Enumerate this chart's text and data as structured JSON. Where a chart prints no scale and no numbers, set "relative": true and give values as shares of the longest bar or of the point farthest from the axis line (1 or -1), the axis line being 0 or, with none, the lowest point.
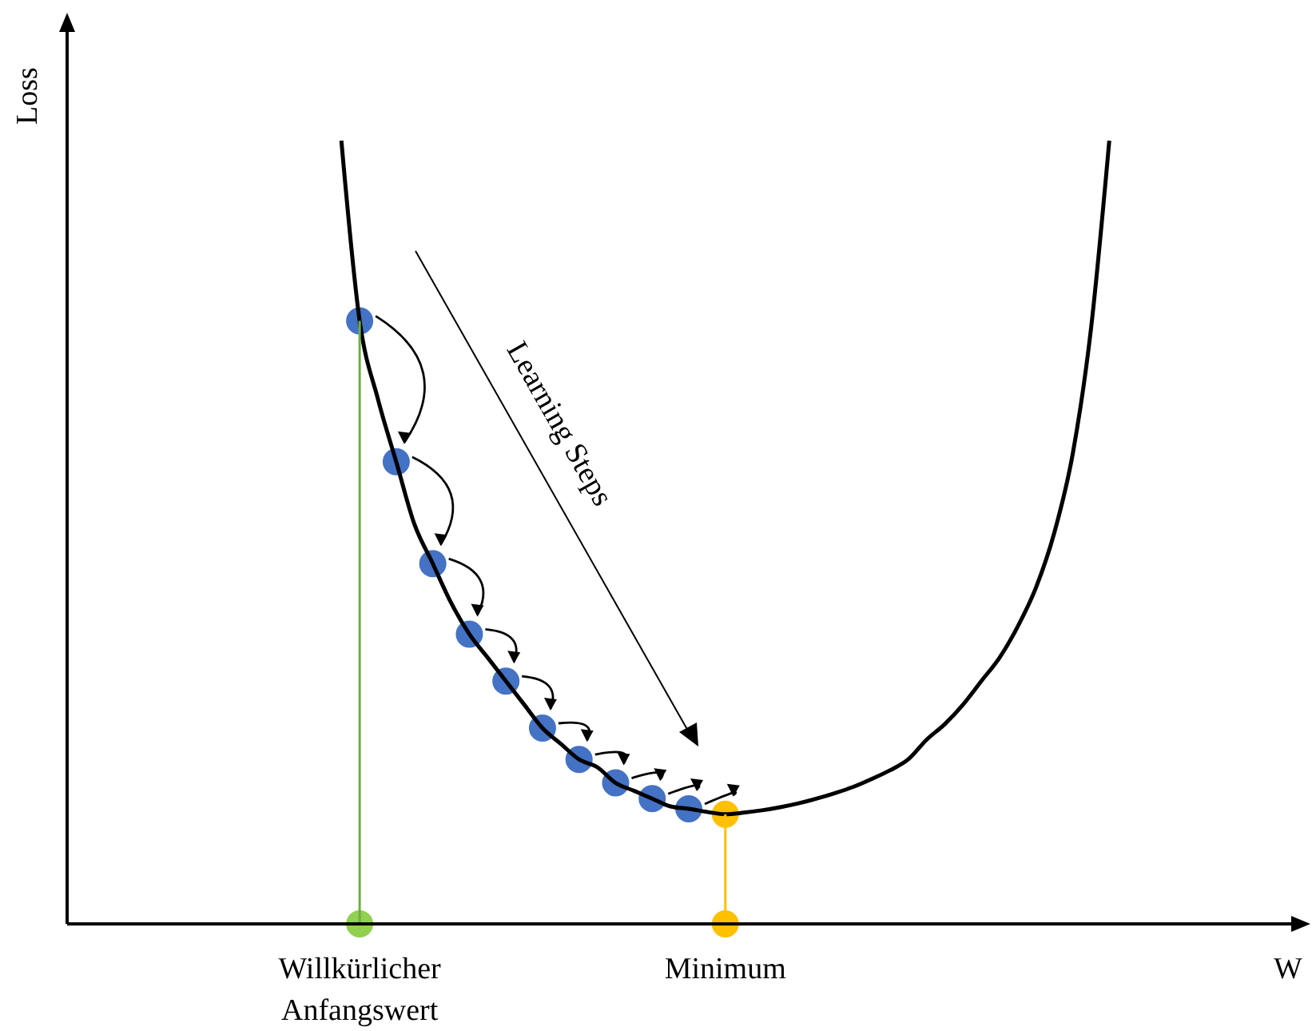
{
  "chart_data": {
    "type": "line",
    "relative": true,
    "xlabel": "W",
    "ylabel": "Loss",
    "categories": [
      null,
      null,
      null,
      null,
      null,
      null,
      null,
      null,
      null,
      null,
      null,
      null,
      null,
      null,
      null,
      null,
      "Willkürlicher Anfangswert",
      null,
      null,
      null,
      null,
      null,
      null,
      null,
      null,
      null,
      null,
      null,
      null,
      null,
      null,
      null,
      null,
      null,
      null,
      null,
      "Minimum",
      null,
      null,
      null,
      null,
      null,
      null,
      null,
      null,
      null,
      null,
      null,
      null,
      null,
      null,
      null,
      null,
      null,
      null,
      null,
      null,
      null,
      null,
      null,
      null,
      null,
      null,
      null,
      null,
      null,
      null,
      null,
      null
    ],
    "annotations": [
      "Learning Steps"
    ],
    "series": [
      {
        "color": "#000000",
        "values": [
          null,
          null,
          null,
          null,
          null,
          null,
          null,
          null,
          null,
          null,
          null,
          null,
          null,
          null,
          null,
          1,
          0.77,
          0.67,
          0.59,
          0.51,
          0.46,
          0.41,
          0.37,
          0.34,
          0.31,
          0.28,
          0.25,
          0.23,
          0.21,
          0.2,
          0.18,
          0.17,
          0.16,
          0.15,
          0.147,
          0.143,
          0.14,
          0.142,
          0.145,
          0.149,
          0.154,
          0.16,
          0.167,
          0.175,
          0.185,
          0.196,
          0.21,
          0.235,
          0.255,
          0.28,
          0.31,
          0.34,
          0.38,
          0.43,
          0.5,
          0.6,
          0.76,
          1,
          null,
          null,
          null,
          null,
          null,
          null,
          null,
          null,
          null,
          null,
          null
        ]
      },
      {
        "type": "bar",
        "color": "#70ad47",
        "values": [
          null,
          null,
          null,
          null,
          null,
          null,
          null,
          null,
          null,
          null,
          null,
          null,
          null,
          null,
          null,
          null,
          0.77,
          null,
          null,
          null,
          null,
          null,
          null,
          null,
          null,
          null,
          null,
          null,
          null,
          null,
          null,
          null,
          null,
          null,
          null,
          null,
          null,
          null,
          null,
          null,
          null,
          null,
          null,
          null,
          null,
          null,
          null,
          null,
          null,
          null,
          null,
          null,
          null,
          null,
          null,
          null,
          null,
          null,
          null,
          null,
          null,
          null,
          null,
          null,
          null,
          null,
          null,
          null,
          null
        ]
      },
      {
        "type": "bar",
        "color": "#ffc000",
        "values": [
          null,
          null,
          null,
          null,
          null,
          null,
          null,
          null,
          null,
          null,
          null,
          null,
          null,
          null,
          null,
          null,
          null,
          null,
          null,
          null,
          null,
          null,
          null,
          null,
          null,
          null,
          null,
          null,
          null,
          null,
          null,
          null,
          null,
          null,
          null,
          null,
          0.14,
          null,
          null,
          null,
          null,
          null,
          null,
          null,
          null,
          null,
          null,
          null,
          null,
          null,
          null,
          null,
          null,
          null,
          null,
          null,
          null,
          null,
          null,
          null,
          null,
          null,
          null,
          null,
          null,
          null,
          null,
          null,
          null
        ]
      },
      {
        "type": "scatter",
        "color": "#4472c4",
        "marker": "circle",
        "values": [
          null,
          null,
          null,
          null,
          null,
          null,
          null,
          null,
          null,
          null,
          null,
          null,
          null,
          null,
          null,
          null,
          0.77,
          null,
          0.59,
          null,
          0.46,
          null,
          0.37,
          null,
          0.31,
          null,
          0.25,
          null,
          0.21,
          null,
          0.18,
          null,
          0.16,
          null,
          0.147,
          null,
          null,
          null,
          null,
          null,
          null,
          null,
          null,
          null,
          null,
          null,
          null,
          null,
          null,
          null,
          null,
          null,
          null,
          null,
          null,
          null,
          null,
          null,
          null,
          null,
          null,
          null,
          null,
          null,
          null,
          null,
          null,
          null,
          null
        ]
      },
      {
        "type": "scatter",
        "color": "#ffc000",
        "marker": "circle",
        "values": [
          null,
          null,
          null,
          null,
          null,
          null,
          null,
          null,
          null,
          null,
          null,
          null,
          null,
          null,
          null,
          null,
          null,
          null,
          null,
          null,
          null,
          null,
          null,
          null,
          null,
          null,
          null,
          null,
          null,
          null,
          null,
          null,
          null,
          null,
          null,
          null,
          0.14,
          null,
          null,
          null,
          null,
          null,
          null,
          null,
          null,
          null,
          null,
          null,
          null,
          null,
          null,
          null,
          null,
          null,
          null,
          null,
          null,
          null,
          null,
          null,
          null,
          null,
          null,
          null,
          null,
          null,
          null,
          null,
          null
        ]
      },
      {
        "type": "scatter",
        "color": "#ffc000",
        "marker": "circle",
        "values": [
          null,
          null,
          null,
          null,
          null,
          null,
          null,
          null,
          null,
          null,
          null,
          null,
          null,
          null,
          null,
          null,
          null,
          null,
          null,
          null,
          null,
          null,
          null,
          null,
          null,
          null,
          null,
          null,
          null,
          null,
          null,
          null,
          null,
          null,
          null,
          null,
          0,
          null,
          null,
          null,
          null,
          null,
          null,
          null,
          null,
          null,
          null,
          null,
          null,
          null,
          null,
          null,
          null,
          null,
          null,
          null,
          null,
          null,
          null,
          null,
          null,
          null,
          null,
          null,
          null,
          null,
          null,
          null,
          null
        ]
      },
      {
        "type": "scatter",
        "color": "#92d050",
        "marker": "circle",
        "values": [
          null,
          null,
          null,
          null,
          null,
          null,
          null,
          null,
          null,
          null,
          null,
          null,
          null,
          null,
          null,
          null,
          0,
          null,
          null,
          null,
          null,
          null,
          null,
          null,
          null,
          null,
          null,
          null,
          null,
          null,
          null,
          null,
          null,
          null,
          null,
          null,
          null,
          null,
          null,
          null,
          null,
          null,
          null,
          null,
          null,
          null,
          null,
          null,
          null,
          null,
          null,
          null,
          null,
          null,
          null,
          null,
          null,
          null,
          null,
          null,
          null,
          null,
          null,
          null,
          null,
          null,
          null,
          null,
          null
        ]
      }
    ]
  }
}
